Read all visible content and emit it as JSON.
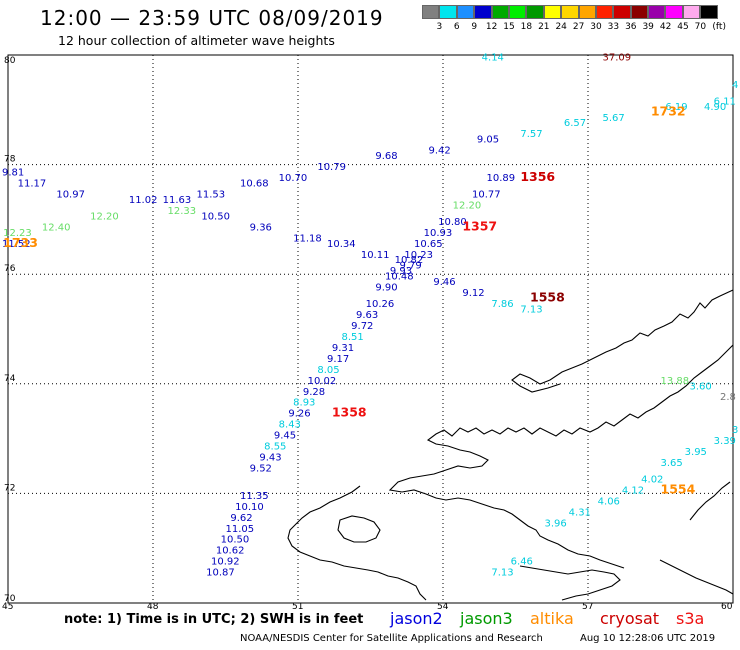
{
  "header": {
    "title": "12:00 — 23:59 UTC 08/09/2019",
    "subtitle": "12 hour collection of altimeter wave heights"
  },
  "colorbar": {
    "unit": "(ft)",
    "labels": [
      "3",
      "6",
      "9",
      "12",
      "15",
      "18",
      "21",
      "24",
      "27",
      "30",
      "33",
      "36",
      "39",
      "42",
      "45",
      "70"
    ],
    "colors": [
      "#808080",
      "#00e5ee",
      "#1e90ff",
      "#0000cd",
      "#00aa00",
      "#00ee00",
      "#009900",
      "#ffff00",
      "#ffd700",
      "#ffa500",
      "#ff2200",
      "#cc0000",
      "#8b0000",
      "#9900aa",
      "#ff00ff",
      "#ffaaee",
      "#000000"
    ]
  },
  "map": {
    "lat_labels": [
      "80",
      "78",
      "76",
      "74",
      "72",
      "70"
    ],
    "lon_labels": [
      "45",
      "48",
      "51",
      "54",
      "57",
      "60"
    ],
    "colors": {
      "jason2": "#0000bb",
      "jason3": "#009900",
      "altika": "#ff8c00",
      "cryosat": "#cc0000",
      "s3a": "#ee1111",
      "cyan": "#00ccdd",
      "lightgreen": "#66dd66",
      "darkred": "#8b0000",
      "gray": "#777777"
    },
    "wave_labels": [
      {
        "text": "4.14",
        "lon": 54.8,
        "lat": 79.9,
        "c": "cyan"
      },
      {
        "text": "37.09",
        "lon": 57.3,
        "lat": 79.9,
        "c": "darkred"
      },
      {
        "text": "4",
        "lon": 60.0,
        "lat": 79.4,
        "c": "cyan"
      },
      {
        "text": "6.11",
        "lon": 59.6,
        "lat": 79.1,
        "c": "cyan"
      },
      {
        "text": "4.90",
        "lon": 59.4,
        "lat": 79.0,
        "c": "cyan"
      },
      {
        "text": "6.19",
        "lon": 58.6,
        "lat": 79.0,
        "c": "cyan"
      },
      {
        "text": "5.67",
        "lon": 57.3,
        "lat": 78.8,
        "c": "cyan"
      },
      {
        "text": "6.57",
        "lon": 56.5,
        "lat": 78.7,
        "c": "cyan"
      },
      {
        "text": "7.57",
        "lon": 55.6,
        "lat": 78.5,
        "c": "cyan"
      },
      {
        "text": "9.05",
        "lon": 54.7,
        "lat": 78.4,
        "c": "jason2"
      },
      {
        "text": "9.42",
        "lon": 53.7,
        "lat": 78.2,
        "c": "jason2"
      },
      {
        "text": "9.68",
        "lon": 52.6,
        "lat": 78.1,
        "c": "jason2"
      },
      {
        "text": "10.79",
        "lon": 51.4,
        "lat": 77.9,
        "c": "jason2"
      },
      {
        "text": "10.70",
        "lon": 50.6,
        "lat": 77.7,
        "c": "jason2"
      },
      {
        "text": "10.68",
        "lon": 49.8,
        "lat": 77.6,
        "c": "jason2"
      },
      {
        "text": "11.53",
        "lon": 48.9,
        "lat": 77.4,
        "c": "jason2"
      },
      {
        "text": "11.63",
        "lon": 48.2,
        "lat": 77.3,
        "c": "jason2"
      },
      {
        "text": "11.02",
        "lon": 47.5,
        "lat": 77.3,
        "c": "jason2"
      },
      {
        "text": "10.97",
        "lon": 46.0,
        "lat": 77.4,
        "c": "jason2"
      },
      {
        "text": "11.17",
        "lon": 45.2,
        "lat": 77.6,
        "c": "jason2"
      },
      {
        "text": "9.81",
        "lon": 44.7,
        "lat": 77.8,
        "c": "jason2"
      },
      {
        "text": "12.20",
        "lon": 46.7,
        "lat": 77.0,
        "c": "lightgreen"
      },
      {
        "text": "12.33",
        "lon": 48.3,
        "lat": 77.1,
        "c": "lightgreen"
      },
      {
        "text": "12.40",
        "lon": 45.7,
        "lat": 76.8,
        "c": "lightgreen"
      },
      {
        "text": "12.23",
        "lon": 44.9,
        "lat": 76.7,
        "c": "lightgreen"
      },
      {
        "text": "11.52",
        "lon": 44.4,
        "lat": 76.5,
        "c": "jason2"
      },
      {
        "text": "10.50",
        "lon": 49.0,
        "lat": 77.0,
        "c": "jason2"
      },
      {
        "text": "9.36",
        "lon": 50.0,
        "lat": 76.8,
        "c": "jason2"
      },
      {
        "text": "11.18",
        "lon": 50.9,
        "lat": 76.6,
        "c": "jason2"
      },
      {
        "text": "10.34",
        "lon": 51.6,
        "lat": 76.5,
        "c": "jason2"
      },
      {
        "text": "10.11",
        "lon": 52.3,
        "lat": 76.3,
        "c": "jason2"
      },
      {
        "text": "10.82",
        "lon": 53.0,
        "lat": 76.2,
        "c": "jason2"
      },
      {
        "text": "10.89",
        "lon": 54.9,
        "lat": 77.7,
        "c": "jason2"
      },
      {
        "text": "10.77",
        "lon": 54.6,
        "lat": 77.4,
        "c": "jason2"
      },
      {
        "text": "12.20",
        "lon": 54.2,
        "lat": 77.2,
        "c": "lightgreen"
      },
      {
        "text": "10.80",
        "lon": 53.9,
        "lat": 76.9,
        "c": "jason2"
      },
      {
        "text": "10.93",
        "lon": 53.6,
        "lat": 76.7,
        "c": "jason2"
      },
      {
        "text": "10.65",
        "lon": 53.4,
        "lat": 76.5,
        "c": "jason2"
      },
      {
        "text": "10.23",
        "lon": 53.2,
        "lat": 76.3,
        "c": "jason2"
      },
      {
        "text": "9.79",
        "lon": 53.1,
        "lat": 76.1,
        "c": "jason2"
      },
      {
        "text": "9.93",
        "lon": 52.9,
        "lat": 76.0,
        "c": "jason2"
      },
      {
        "text": "10.48",
        "lon": 52.8,
        "lat": 75.9,
        "c": "jason2"
      },
      {
        "text": "9.90",
        "lon": 52.6,
        "lat": 75.7,
        "c": "jason2"
      },
      {
        "text": "9.46",
        "lon": 53.8,
        "lat": 75.8,
        "c": "jason2"
      },
      {
        "text": "9.12",
        "lon": 54.4,
        "lat": 75.6,
        "c": "jason2"
      },
      {
        "text": "7.86",
        "lon": 55.0,
        "lat": 75.4,
        "c": "cyan"
      },
      {
        "text": "7.13",
        "lon": 55.6,
        "lat": 75.3,
        "c": "cyan"
      },
      {
        "text": "10.26",
        "lon": 52.4,
        "lat": 75.4,
        "c": "jason2"
      },
      {
        "text": "9.63",
        "lon": 52.2,
        "lat": 75.2,
        "c": "jason2"
      },
      {
        "text": "9.72",
        "lon": 52.1,
        "lat": 75.0,
        "c": "jason2"
      },
      {
        "text": "8.51",
        "lon": 51.9,
        "lat": 74.8,
        "c": "cyan"
      },
      {
        "text": "9.31",
        "lon": 51.7,
        "lat": 74.6,
        "c": "jason2"
      },
      {
        "text": "9.17",
        "lon": 51.6,
        "lat": 74.4,
        "c": "jason2"
      },
      {
        "text": "8.05",
        "lon": 51.4,
        "lat": 74.2,
        "c": "cyan"
      },
      {
        "text": "10.02",
        "lon": 51.2,
        "lat": 74.0,
        "c": "jason2"
      },
      {
        "text": "9.28",
        "lon": 51.1,
        "lat": 73.8,
        "c": "jason2"
      },
      {
        "text": "8.93",
        "lon": 50.9,
        "lat": 73.6,
        "c": "cyan"
      },
      {
        "text": "9.26",
        "lon": 50.8,
        "lat": 73.4,
        "c": "jason2"
      },
      {
        "text": "8.43",
        "lon": 50.6,
        "lat": 73.2,
        "c": "cyan"
      },
      {
        "text": "9.45",
        "lon": 50.5,
        "lat": 73.0,
        "c": "jason2"
      },
      {
        "text": "8.55",
        "lon": 50.3,
        "lat": 72.8,
        "c": "cyan"
      },
      {
        "text": "9.43",
        "lon": 50.2,
        "lat": 72.6,
        "c": "jason2"
      },
      {
        "text": "9.52",
        "lon": 50.0,
        "lat": 72.4,
        "c": "jason2"
      },
      {
        "text": "11.35",
        "lon": 49.8,
        "lat": 71.9,
        "c": "jason2"
      },
      {
        "text": "10.10",
        "lon": 49.7,
        "lat": 71.7,
        "c": "jason2"
      },
      {
        "text": "9.62",
        "lon": 49.6,
        "lat": 71.5,
        "c": "jason2"
      },
      {
        "text": "11.05",
        "lon": 49.5,
        "lat": 71.3,
        "c": "jason2"
      },
      {
        "text": "10.50",
        "lon": 49.4,
        "lat": 71.1,
        "c": "jason2"
      },
      {
        "text": "10.62",
        "lon": 49.3,
        "lat": 70.9,
        "c": "jason2"
      },
      {
        "text": "10.92",
        "lon": 49.2,
        "lat": 70.7,
        "c": "jason2"
      },
      {
        "text": "10.87",
        "lon": 49.1,
        "lat": 70.5,
        "c": "jason2"
      },
      {
        "text": "13.88",
        "lon": 58.5,
        "lat": 74.0,
        "c": "lightgreen"
      },
      {
        "text": "3.60",
        "lon": 59.1,
        "lat": 73.9,
        "c": "cyan"
      },
      {
        "text": "2.8",
        "lon": 59.8,
        "lat": 73.7,
        "c": "gray"
      },
      {
        "text": "3",
        "lon": 60.0,
        "lat": 73.1,
        "c": "cyan"
      },
      {
        "text": "3.39",
        "lon": 59.6,
        "lat": 72.9,
        "c": "cyan"
      },
      {
        "text": "3.95",
        "lon": 59.0,
        "lat": 72.7,
        "c": "cyan"
      },
      {
        "text": "3.65",
        "lon": 58.5,
        "lat": 72.5,
        "c": "cyan"
      },
      {
        "text": "4.02",
        "lon": 58.1,
        "lat": 72.2,
        "c": "cyan"
      },
      {
        "text": "4.12",
        "lon": 57.7,
        "lat": 72.0,
        "c": "cyan"
      },
      {
        "text": "4.06",
        "lon": 57.2,
        "lat": 71.8,
        "c": "cyan"
      },
      {
        "text": "4.31",
        "lon": 56.6,
        "lat": 71.6,
        "c": "cyan"
      },
      {
        "text": "3.96",
        "lon": 56.1,
        "lat": 71.4,
        "c": "cyan"
      },
      {
        "text": "6.46",
        "lon": 55.4,
        "lat": 70.7,
        "c": "cyan"
      },
      {
        "text": "7.13",
        "lon": 55.0,
        "lat": 70.5,
        "c": "cyan"
      }
    ],
    "pass_labels": [
      {
        "text": "1732",
        "lon": 58.3,
        "lat": 78.9,
        "c": "altika"
      },
      {
        "text": "1356",
        "lon": 55.6,
        "lat": 77.7,
        "c": "cryosat"
      },
      {
        "text": "1357",
        "lon": 54.4,
        "lat": 76.8,
        "c": "s3a"
      },
      {
        "text": "1733",
        "lon": 44.9,
        "lat": 76.5,
        "c": "altika"
      },
      {
        "text": "1558",
        "lon": 55.8,
        "lat": 75.5,
        "c": "darkred"
      },
      {
        "text": "1358",
        "lon": 51.7,
        "lat": 73.4,
        "c": "s3a"
      },
      {
        "text": "1554",
        "lon": 58.5,
        "lat": 72.0,
        "c": "altika"
      }
    ]
  },
  "note": "note:  1) Time is in UTC;  2) SWH is in feet",
  "satellites": {
    "jason2": "jason2",
    "jason3": "jason3",
    "altika": "altika",
    "cryosat": "cryosat",
    "s3a": "s3a"
  },
  "footer": {
    "center": "NOAA/NESDIS Center for Satellite Applications and Research",
    "timestamp": "Aug 10 12:28:06 UTC 2019"
  }
}
